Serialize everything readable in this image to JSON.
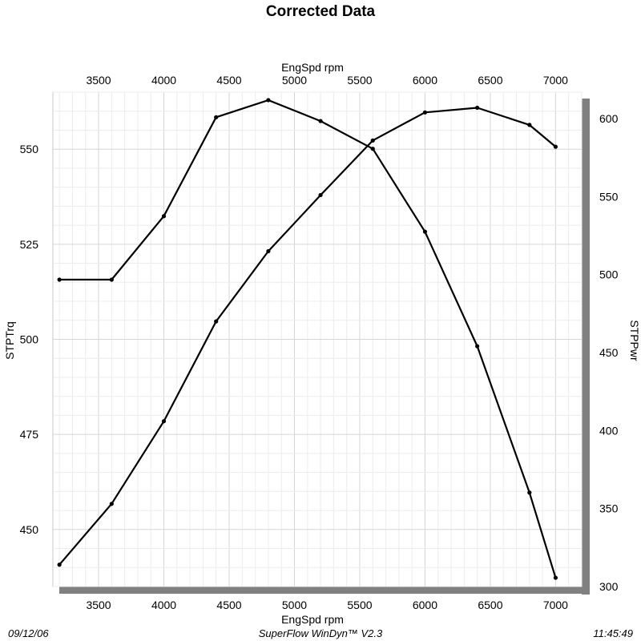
{
  "chart_data": {
    "type": "line",
    "title": "Corrected Data",
    "xlabel_top": "EngSpd  rpm",
    "xlabel_bottom": "EngSpd  rpm",
    "ylabel_left": "STPTrq",
    "ylabel_right": "STPPwr",
    "xlim": [
      3150,
      7200
    ],
    "ylim_left": [
      435,
      565
    ],
    "ylim_right": [
      300,
      617
    ],
    "x_ticks": [
      3500,
      4000,
      4500,
      5000,
      5500,
      6000,
      6500,
      7000
    ],
    "y_left_ticks": [
      450,
      475,
      500,
      525,
      550
    ],
    "y_right_ticks": [
      300,
      350,
      400,
      450,
      500,
      550,
      600
    ],
    "grid": true,
    "series": [
      {
        "axis": "left",
        "x": [
          3200,
          3600,
          4000,
          4400,
          4800,
          5200,
          5600,
          6000,
          6400,
          6800,
          7000
        ],
        "values": [
          515.7,
          515.7,
          532.4,
          558.4,
          562.9,
          557.4,
          550.1,
          528.3,
          498.2,
          459.7,
          437.3
        ]
      },
      {
        "axis": "right",
        "x": [
          3200,
          3600,
          4000,
          4400,
          4800,
          5200,
          5600,
          6000,
          6400,
          6800,
          7000
        ],
        "values": [
          314,
          353,
          406,
          470,
          515,
          551,
          586,
          604,
          607,
          596,
          582
        ]
      }
    ]
  },
  "footer": {
    "date": "09/12/06",
    "software": "SuperFlow WinDyn™ V2.3",
    "time": "11:45:49"
  }
}
